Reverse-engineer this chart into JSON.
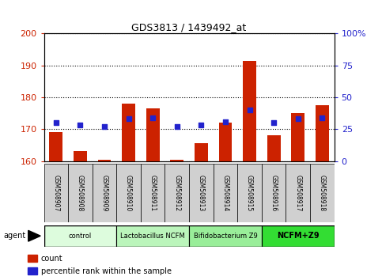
{
  "title": "GDS3813 / 1439492_at",
  "samples": [
    "GSM508907",
    "GSM508908",
    "GSM508909",
    "GSM508910",
    "GSM508911",
    "GSM508912",
    "GSM508913",
    "GSM508914",
    "GSM508915",
    "GSM508916",
    "GSM508917",
    "GSM508918"
  ],
  "count_values": [
    169,
    163,
    160.5,
    178,
    176.5,
    160.5,
    165.5,
    172,
    191.5,
    168,
    175,
    177.5
  ],
  "percentile_values": [
    30,
    28,
    27,
    33,
    34,
    27,
    28,
    31,
    40,
    30,
    33,
    34
  ],
  "count_base": 160,
  "ylim_left": [
    160,
    200
  ],
  "ylim_right": [
    0,
    100
  ],
  "yticks_left": [
    160,
    170,
    180,
    190,
    200
  ],
  "yticks_right": [
    0,
    25,
    50,
    75,
    100
  ],
  "bar_color": "#cc2200",
  "dot_color": "#2222cc",
  "agent_groups": [
    {
      "label": "control",
      "start": 0,
      "end": 2,
      "color": "#ddfcdd"
    },
    {
      "label": "Lactobacillus NCFM",
      "start": 3,
      "end": 5,
      "color": "#bbf5bb"
    },
    {
      "label": "Bifidobacterium Z9",
      "start": 6,
      "end": 8,
      "color": "#99ee99"
    },
    {
      "label": "NCFM+Z9",
      "start": 9,
      "end": 11,
      "color": "#33dd33"
    }
  ],
  "agent_label": "agent",
  "legend_count_label": "count",
  "legend_percentile_label": "percentile rank within the sample",
  "tick_label_color_left": "#cc2200",
  "tick_label_color_right": "#2222cc",
  "bar_width": 0.55,
  "dot_size": 25,
  "sample_box_color": "#d0d0d0"
}
